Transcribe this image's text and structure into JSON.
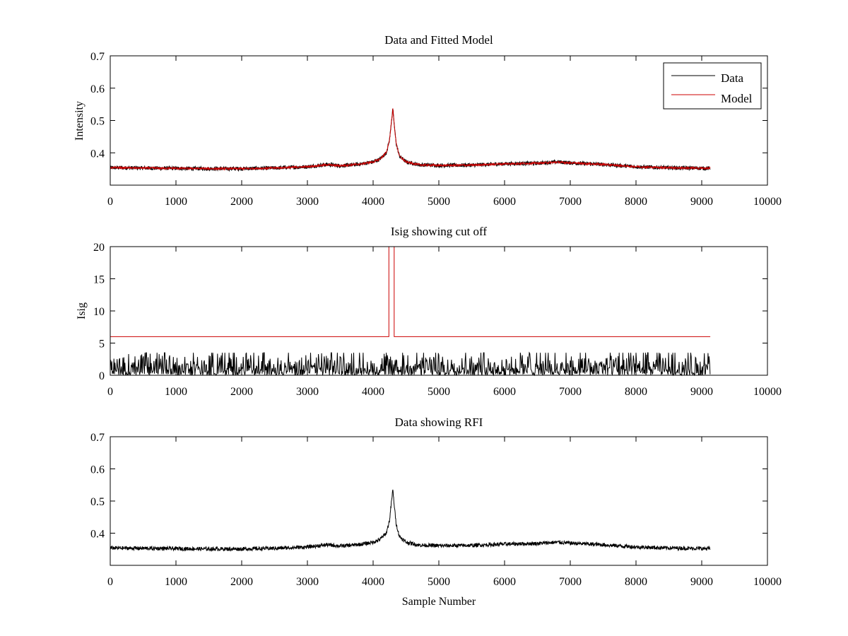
{
  "chart_data": [
    {
      "type": "line",
      "title": "Data and Fitted Model",
      "xlabel": "",
      "ylabel": "Intensity",
      "xlim": [
        0,
        10000
      ],
      "ylim": [
        0.3,
        0.7
      ],
      "xticks": [
        0,
        1000,
        2000,
        3000,
        4000,
        5000,
        6000,
        7000,
        8000,
        9000,
        10000
      ],
      "xtick_labels": [
        "0",
        "1000",
        "2000",
        "3000",
        "4000",
        "5000",
        "6000",
        "7000",
        "8000",
        "9000",
        "10000"
      ],
      "yticks": [
        0.4,
        0.5,
        0.6,
        0.7
      ],
      "ytick_labels": [
        "0.4",
        "0.5",
        "0.6",
        "0.7"
      ],
      "legend": {
        "placement": "top-right",
        "entries": [
          {
            "name": "Data",
            "color": "#000000"
          },
          {
            "name": "Model",
            "color": "#cc0000"
          }
        ]
      },
      "series": [
        {
          "name": "Data",
          "color": "#000000",
          "x": [
            0,
            500,
            1000,
            1500,
            2000,
            2500,
            3000,
            3300,
            3500,
            3800,
            4000,
            4100,
            4200,
            4250,
            4280,
            4300,
            4320,
            4350,
            4400,
            4500,
            4700,
            5000,
            5500,
            6000,
            6500,
            6800,
            7000,
            7500,
            8000,
            8500,
            9130
          ],
          "values": [
            0.354,
            0.353,
            0.352,
            0.351,
            0.351,
            0.353,
            0.357,
            0.364,
            0.36,
            0.365,
            0.372,
            0.38,
            0.4,
            0.44,
            0.5,
            0.535,
            0.49,
            0.43,
            0.39,
            0.372,
            0.363,
            0.361,
            0.362,
            0.366,
            0.368,
            0.372,
            0.369,
            0.364,
            0.357,
            0.354,
            0.352
          ],
          "noise": 0.006
        },
        {
          "name": "Model",
          "color": "#cc0000",
          "x": [
            0,
            500,
            1000,
            1500,
            2000,
            2500,
            3000,
            3300,
            3500,
            3800,
            4000,
            4100,
            4200,
            4250,
            4280,
            4300,
            4320,
            4350,
            4400,
            4500,
            4700,
            5000,
            5500,
            6000,
            6500,
            6800,
            7000,
            7500,
            8000,
            8500,
            9130
          ],
          "values": [
            0.354,
            0.353,
            0.352,
            0.351,
            0.351,
            0.353,
            0.357,
            0.363,
            0.36,
            0.365,
            0.372,
            0.38,
            0.4,
            0.44,
            0.5,
            0.535,
            0.49,
            0.43,
            0.39,
            0.372,
            0.363,
            0.361,
            0.362,
            0.366,
            0.368,
            0.371,
            0.369,
            0.364,
            0.357,
            0.354,
            0.352
          ],
          "noise": 0.003
        }
      ]
    },
    {
      "type": "line",
      "title": "Isig showing cut off",
      "xlabel": "",
      "ylabel": "Isig",
      "xlim": [
        0,
        10000
      ],
      "ylim": [
        0,
        20
      ],
      "xticks": [
        0,
        1000,
        2000,
        3000,
        4000,
        5000,
        6000,
        7000,
        8000,
        9000,
        10000
      ],
      "xtick_labels": [
        "0",
        "1000",
        "2000",
        "3000",
        "4000",
        "5000",
        "6000",
        "7000",
        "8000",
        "9000",
        "10000"
      ],
      "yticks": [
        0,
        5,
        10,
        15,
        20
      ],
      "ytick_labels": [
        "0",
        "5",
        "10",
        "15",
        "20"
      ],
      "series": [
        {
          "name": "Isig",
          "color": "#000000",
          "x": [
            0,
            9130
          ],
          "values": [
            1.0,
            1.0
          ],
          "noise_max": 3.5
        },
        {
          "name": "Cut off",
          "color": "#cc0000",
          "x": [
            0,
            4240,
            4240,
            4320,
            4320,
            9130
          ],
          "values": [
            6,
            6,
            20,
            20,
            6,
            6
          ]
        }
      ]
    },
    {
      "type": "line",
      "title": "Data showing RFI",
      "xlabel": "Sample Number",
      "ylabel": "",
      "xlim": [
        0,
        10000
      ],
      "ylim": [
        0.3,
        0.7
      ],
      "xticks": [
        0,
        1000,
        2000,
        3000,
        4000,
        5000,
        6000,
        7000,
        8000,
        9000,
        10000
      ],
      "xtick_labels": [
        "0",
        "1000",
        "2000",
        "3000",
        "4000",
        "5000",
        "6000",
        "7000",
        "8000",
        "9000",
        "10000"
      ],
      "yticks": [
        0.4,
        0.5,
        0.6,
        0.7
      ],
      "ytick_labels": [
        "0.4",
        "0.5",
        "0.6",
        "0.7"
      ],
      "series": [
        {
          "name": "Data",
          "color": "#000000",
          "x": [
            0,
            500,
            1000,
            1500,
            2000,
            2500,
            3000,
            3300,
            3500,
            3800,
            4000,
            4100,
            4200,
            4250,
            4280,
            4300,
            4320,
            4350,
            4400,
            4500,
            4700,
            5000,
            5500,
            6000,
            6500,
            6800,
            7000,
            7500,
            8000,
            8500,
            9130
          ],
          "values": [
            0.354,
            0.353,
            0.352,
            0.351,
            0.351,
            0.353,
            0.357,
            0.364,
            0.36,
            0.365,
            0.372,
            0.38,
            0.4,
            0.44,
            0.5,
            0.535,
            0.49,
            0.43,
            0.39,
            0.372,
            0.363,
            0.361,
            0.362,
            0.366,
            0.368,
            0.372,
            0.369,
            0.364,
            0.357,
            0.354,
            0.352
          ],
          "noise": 0.006
        }
      ]
    }
  ]
}
